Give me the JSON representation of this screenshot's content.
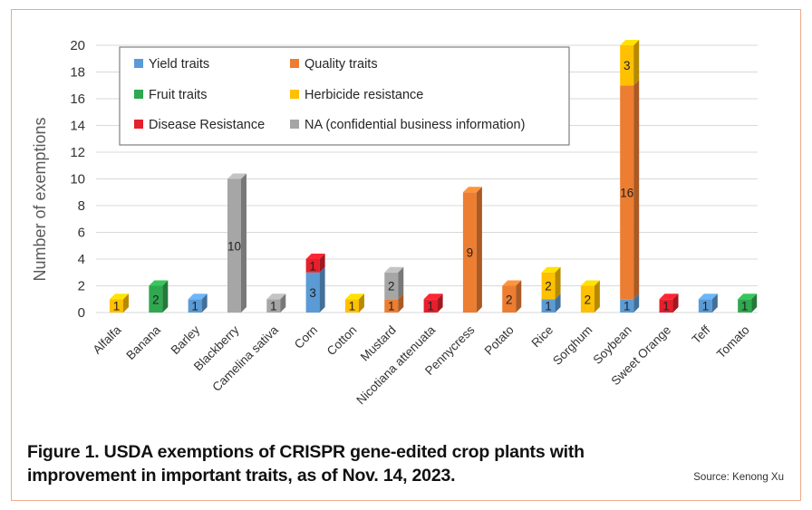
{
  "caption": "Figure 1. USDA exemptions of CRISPR gene-edited crop plants with improvement in important traits, as of Nov. 14, 2023.",
  "source": "Source: Kenong Xu",
  "colors": {
    "Yield traits": "#5b9bd5",
    "Quality traits": "#ed7d31",
    "Fruit traits": "#2fa84f",
    "Herbicide resistance": "#ffc000",
    "Disease Resistance": "#e3202c",
    "NA (confidential business information)": "#a6a6a6",
    "frame_border": "#f0a98a"
  },
  "chart_data": {
    "type": "bar",
    "stacked": true,
    "title": "",
    "xlabel": "",
    "ylabel": "Number of exemptions",
    "ylim": [
      0,
      20
    ],
    "yticks": [
      0,
      2,
      4,
      6,
      8,
      10,
      12,
      14,
      16,
      18,
      20
    ],
    "grid": true,
    "legend_position": "top-left",
    "legend": [
      "Yield traits",
      "Quality traits",
      "Fruit traits",
      "Herbicide resistance",
      "Disease Resistance",
      "NA (confidential business information)"
    ],
    "categories": [
      "Alfalfa",
      "Banana",
      "Barley",
      "Blackberry",
      "Camelina sativa",
      "Corn",
      "Cotton",
      "Mustard",
      "Nicotiana attenuata",
      "Pennycress",
      "Potato",
      "Rice",
      "Sorghum",
      "Soybean",
      "Sweet Orange",
      "Teff",
      "Tomato"
    ],
    "series": [
      {
        "name": "Yield traits",
        "values": [
          0,
          0,
          1,
          0,
          0,
          3,
          0,
          0,
          0,
          0,
          0,
          1,
          0,
          1,
          0,
          1,
          0
        ]
      },
      {
        "name": "Quality traits",
        "values": [
          0,
          0,
          0,
          0,
          0,
          0,
          0,
          1,
          0,
          9,
          2,
          0,
          0,
          16,
          0,
          0,
          0
        ]
      },
      {
        "name": "Fruit traits",
        "values": [
          0,
          2,
          0,
          0,
          0,
          0,
          0,
          0,
          0,
          0,
          0,
          0,
          0,
          0,
          0,
          0,
          1
        ]
      },
      {
        "name": "Herbicide resistance",
        "values": [
          1,
          0,
          0,
          0,
          0,
          0,
          1,
          0,
          0,
          0,
          0,
          2,
          2,
          3,
          0,
          0,
          0
        ]
      },
      {
        "name": "Disease Resistance",
        "values": [
          0,
          0,
          0,
          0,
          0,
          1,
          0,
          0,
          1,
          0,
          0,
          0,
          0,
          0,
          1,
          0,
          0
        ]
      },
      {
        "name": "NA (confidential business information)",
        "values": [
          0,
          0,
          0,
          10,
          1,
          0,
          0,
          2,
          0,
          0,
          0,
          0,
          0,
          0,
          0,
          0,
          0
        ]
      }
    ]
  }
}
